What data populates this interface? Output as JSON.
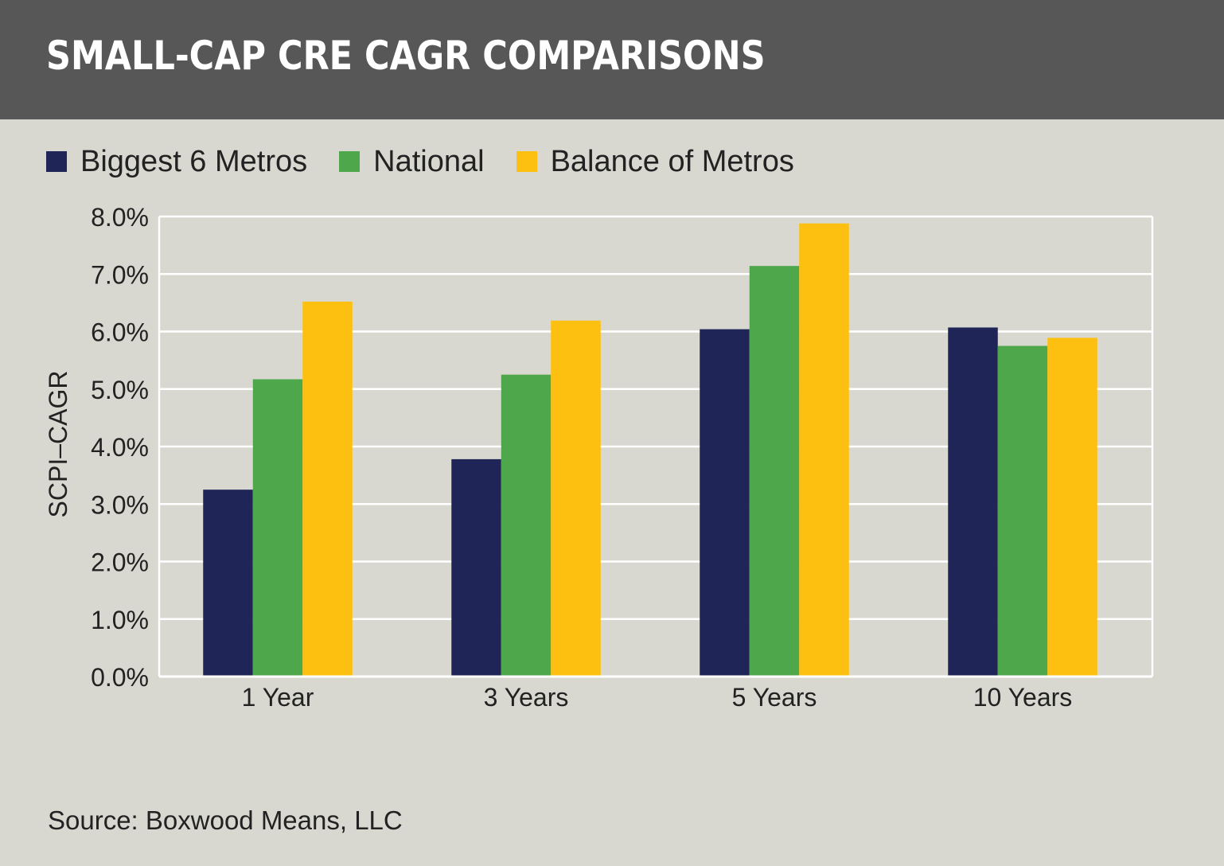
{
  "title": "SMALL-CAP CRE CAGR COMPARISONS",
  "source": "Source: Boxwood Means, LLC",
  "colors": {
    "header_bg": "#575757",
    "page_bg": "#d8d8d1",
    "biggest6": "#1f2657",
    "national": "#4ea74a",
    "balance": "#fdc010",
    "gridline": "#ffffff"
  },
  "chart_data": {
    "type": "bar",
    "title": "SMALL-CAP CRE CAGR COMPARISONS",
    "xlabel": "",
    "ylabel": "SCPI–CAGR",
    "ylim": [
      0,
      8
    ],
    "y_ticks": [
      "0.0%",
      "1.0%",
      "2.0%",
      "3.0%",
      "4.0%",
      "5.0%",
      "6.0%",
      "7.0%",
      "8.0%"
    ],
    "grid": true,
    "legend_position": "top-left",
    "categories": [
      "1 Year",
      "3 Years",
      "5 Years",
      "10 Years"
    ],
    "series": [
      {
        "name": "Biggest 6 Metros",
        "color": "#1f2657",
        "values": [
          3.25,
          3.78,
          6.04,
          6.07
        ]
      },
      {
        "name": "National",
        "color": "#4ea74a",
        "values": [
          5.17,
          5.25,
          7.14,
          5.75
        ]
      },
      {
        "name": "Balance of Metros",
        "color": "#fdc010",
        "values": [
          6.52,
          6.19,
          7.88,
          5.89
        ]
      }
    ]
  }
}
